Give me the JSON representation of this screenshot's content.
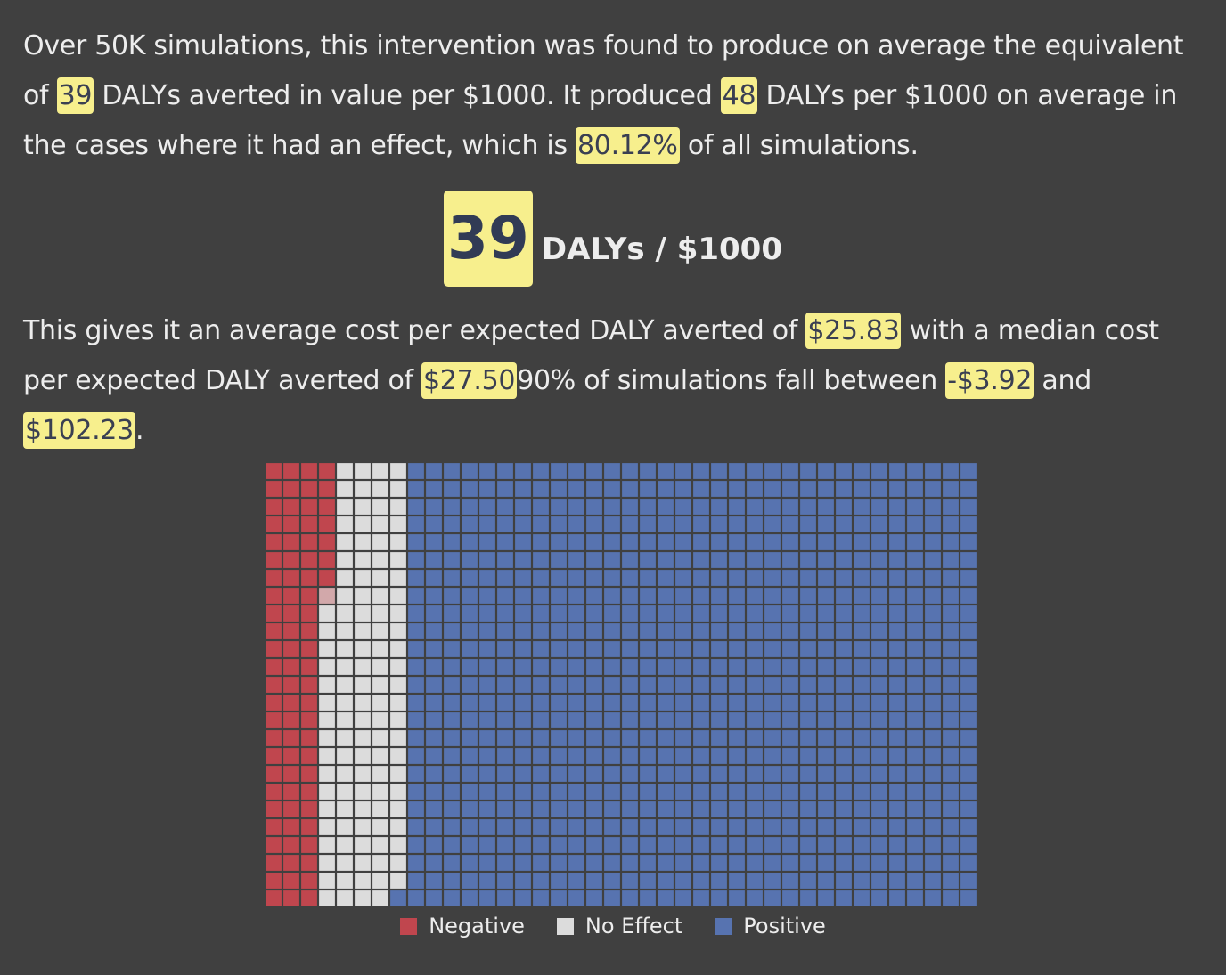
{
  "summary": {
    "t1": "Over 50K simulations, this intervention was found to produce on average the equivalent of ",
    "avg_dalys": "39",
    "t2": " DALYs averted in value per $1000. It produced ",
    "effect_dalys": "48",
    "t3": " DALYs per $1000 on average in the cases where it had an effect, which is ",
    "effect_pct": "80.12%",
    "t4": " of all simulations."
  },
  "headline": {
    "value": "39",
    "unit": "DALYs / $1000"
  },
  "cost": {
    "t1": "This gives it an average cost per expected DALY averted of ",
    "avg_cost": "$25.83",
    "t2": " with a median cost per expected DALY averted of ",
    "median_cost": "$27.50",
    "t3": "90% of simulations fall between ",
    "low": "-$3.92",
    "t4": " and ",
    "high": "$102.23",
    "t5": "."
  },
  "chart_data": {
    "type": "waffle",
    "grid": {
      "columns": 40,
      "rows": 25,
      "total_cells": 1000
    },
    "fill_order": "column-major",
    "categories": [
      {
        "name": "Negative",
        "count": 82.5,
        "color": "#c0464e"
      },
      {
        "name": "No Effect",
        "count": 116.5,
        "color": "#dcdcdc"
      },
      {
        "name": "Positive",
        "count": 801,
        "color": "#5773b0"
      }
    ],
    "legend_position": "bottom-center",
    "border_color": "#404040"
  }
}
